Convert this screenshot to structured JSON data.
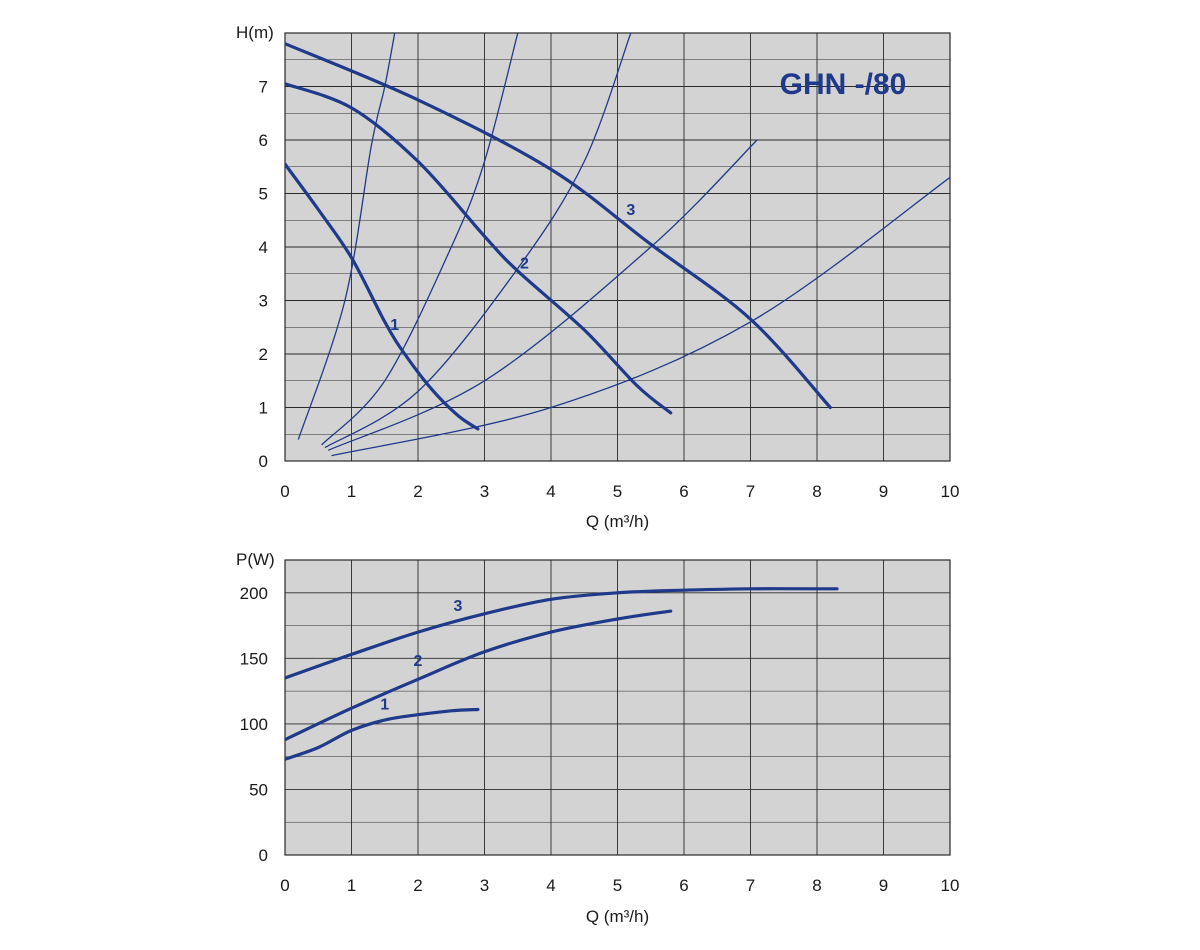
{
  "colors": {
    "plot_background": "#d3d3d3",
    "grid": "#2a2a2a",
    "curve": "#1f3a8a"
  },
  "chart_data": [
    {
      "type": "line",
      "title": "GHN -/80",
      "xlabel": "Q (m³/h)",
      "ylabel": "H(m)",
      "xlim": [
        0,
        10
      ],
      "ylim": [
        0,
        8
      ],
      "xticks": [
        "0",
        "1",
        "2",
        "3",
        "4",
        "5",
        "6",
        "7",
        "8",
        "9",
        "10"
      ],
      "yticks": [
        "0",
        "1",
        "2",
        "3",
        "4",
        "5",
        "6",
        "7"
      ],
      "grid": true,
      "series": [
        {
          "name": "1",
          "x": [
            0,
            0.5,
            1.0,
            1.5,
            1.8,
            2.2,
            2.6,
            2.9
          ],
          "y": [
            5.55,
            4.7,
            3.8,
            2.6,
            2.0,
            1.35,
            0.85,
            0.6
          ]
        },
        {
          "name": "2",
          "x": [
            0,
            1.0,
            2.0,
            3.0,
            3.5,
            4.5,
            5.3,
            5.8
          ],
          "y": [
            7.05,
            6.6,
            5.6,
            4.2,
            3.55,
            2.45,
            1.4,
            0.9
          ]
        },
        {
          "name": "3",
          "x": [
            0,
            2.0,
            4.0,
            5.5,
            7.0,
            8.2
          ],
          "y": [
            7.8,
            6.75,
            5.45,
            4.05,
            2.65,
            1.0
          ]
        }
      ],
      "system_curves": [
        {
          "x": [
            0.2,
            0.9,
            1.3,
            1.5,
            1.65
          ],
          "y": [
            0.4,
            3.0,
            5.9,
            7.0,
            8.0
          ]
        },
        {
          "x": [
            0.55,
            1.5,
            2.5,
            3.0,
            3.5
          ],
          "y": [
            0.3,
            1.5,
            4.0,
            5.6,
            8.0
          ]
        },
        {
          "x": [
            0.6,
            2.0,
            3.5,
            4.5,
            5.2
          ],
          "y": [
            0.25,
            1.3,
            3.6,
            5.6,
            8.0
          ]
        },
        {
          "x": [
            0.65,
            3.0,
            5.5,
            7.1
          ],
          "y": [
            0.2,
            1.5,
            4.0,
            6.0
          ]
        },
        {
          "x": [
            0.7,
            4.0,
            7.0,
            10.0
          ],
          "y": [
            0.1,
            1.0,
            2.6,
            5.3
          ]
        }
      ],
      "labels": [
        {
          "text": "1",
          "x": 1.65,
          "y": 2.45
        },
        {
          "text": "2",
          "x": 3.6,
          "y": 3.6
        },
        {
          "text": "3",
          "x": 5.2,
          "y": 4.6
        }
      ]
    },
    {
      "type": "line",
      "title": "",
      "xlabel": "Q (m³/h)",
      "ylabel": "P(W)",
      "xlim": [
        0,
        10
      ],
      "ylim": [
        0,
        225
      ],
      "xticks": [
        "0",
        "1",
        "2",
        "3",
        "4",
        "5",
        "6",
        "7",
        "8",
        "9",
        "10"
      ],
      "yticks": [
        "0",
        "50",
        "100",
        "150",
        "200"
      ],
      "grid": true,
      "series": [
        {
          "name": "1",
          "x": [
            0,
            0.5,
            1.0,
            1.5,
            2.0,
            2.5,
            2.9
          ],
          "y": [
            73,
            82,
            95,
            103,
            107,
            110,
            111
          ]
        },
        {
          "name": "2",
          "x": [
            0,
            1.0,
            2.0,
            3.0,
            4.0,
            5.0,
            5.8
          ],
          "y": [
            88,
            112,
            134,
            155,
            170,
            180,
            186
          ]
        },
        {
          "name": "3",
          "x": [
            0,
            1.0,
            2.0,
            3.0,
            4.0,
            5.0,
            6.0,
            7.0,
            8.0,
            8.3
          ],
          "y": [
            135,
            153,
            170,
            184,
            195,
            200,
            202,
            203,
            203,
            203
          ]
        }
      ],
      "labels": [
        {
          "text": "1",
          "x": 1.5,
          "y": 111
        },
        {
          "text": "2",
          "x": 2.0,
          "y": 144
        },
        {
          "text": "3",
          "x": 2.6,
          "y": 186
        }
      ]
    }
  ]
}
